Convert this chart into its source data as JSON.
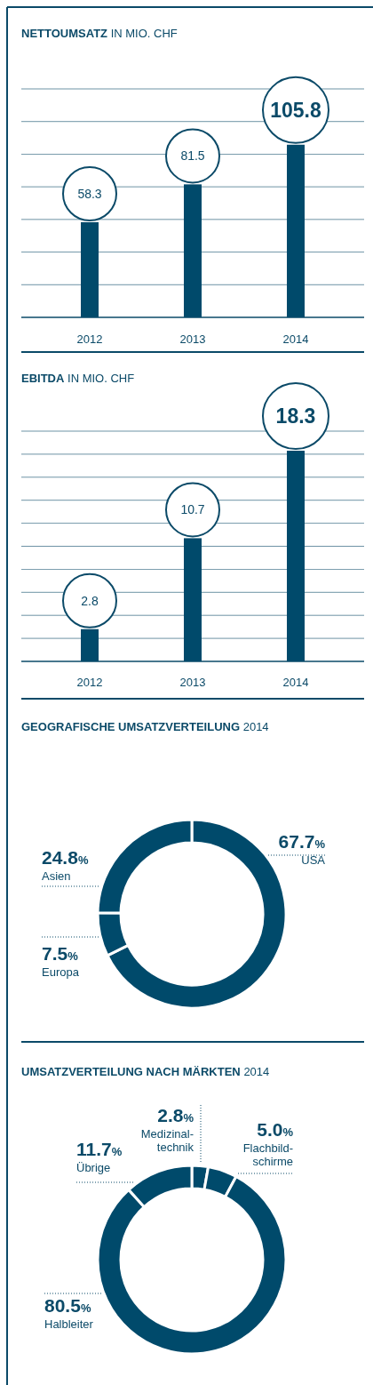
{
  "chart_data": [
    {
      "type": "bar",
      "title": "NETTOUMSATZ",
      "subtitle": "IN MIO. CHF",
      "categories": [
        "2012",
        "2013",
        "2014"
      ],
      "values": [
        58.3,
        81.5,
        105.8
      ],
      "color": "#004a6b",
      "ylim": [
        0,
        140
      ],
      "yticks": [
        {
          "value": 0,
          "label": null
        },
        {
          "value": 20,
          "label": null
        },
        {
          "value": 40,
          "label": null
        },
        {
          "value": 60,
          "label": null
        },
        {
          "value": 80,
          "label": null
        },
        {
          "value": 100,
          "label": null
        },
        {
          "value": 120,
          "label": null
        },
        {
          "value": 140,
          "label": null
        }
      ],
      "grid": "y",
      "tick_labels": "x",
      "data_labels": true
    },
    {
      "type": "bar",
      "title": "EBITDA",
      "subtitle": "IN MIO. CHF",
      "categories": [
        "2012",
        "2013",
        "2014"
      ],
      "values": [
        2.8,
        10.7,
        18.3
      ],
      "color": "#004a6b",
      "ylim": [
        0,
        20
      ],
      "yticks": [
        {
          "value": 0,
          "label": null
        },
        {
          "value": 2,
          "label": null
        },
        {
          "value": 4,
          "label": null
        },
        {
          "value": 6,
          "label": null
        },
        {
          "value": 8,
          "label": null
        },
        {
          "value": 10,
          "label": null
        },
        {
          "value": 12,
          "label": null
        },
        {
          "value": 14,
          "label": null
        },
        {
          "value": 16,
          "label": null
        },
        {
          "value": 18,
          "label": null
        },
        {
          "value": 20,
          "label": null
        }
      ],
      "grid": "y",
      "tick_labels": "x",
      "data_labels": true
    },
    {
      "type": "donut",
      "title": "GEOGRAFISCHE UMSATZVERTEILUNG",
      "subtitle": "2014",
      "categories": [
        "USA",
        "Europa",
        "Asien"
      ],
      "values": [
        67.7,
        7.5,
        24.8
      ],
      "value_labels": [
        "67.7%",
        "7.5%",
        "24.8%"
      ],
      "colors": [
        "#004a6b",
        "#004a6b",
        "#004a6b"
      ]
    },
    {
      "type": "donut",
      "title": "UMSATZVERTEILUNG NACH MÄRKTEN",
      "subtitle": "2014",
      "categories": [
        "Medizinal-technik",
        "Flachbild-schirme",
        "Halbleiter",
        "Übrige"
      ],
      "values": [
        2.8,
        5.0,
        80.5,
        11.7
      ],
      "value_labels": [
        "2.8%",
        "5.0%",
        "80.5%",
        "11.7%"
      ],
      "colors": [
        "#004a6b",
        "#004a6b",
        "#004a6b",
        "#004a6b"
      ]
    }
  ]
}
